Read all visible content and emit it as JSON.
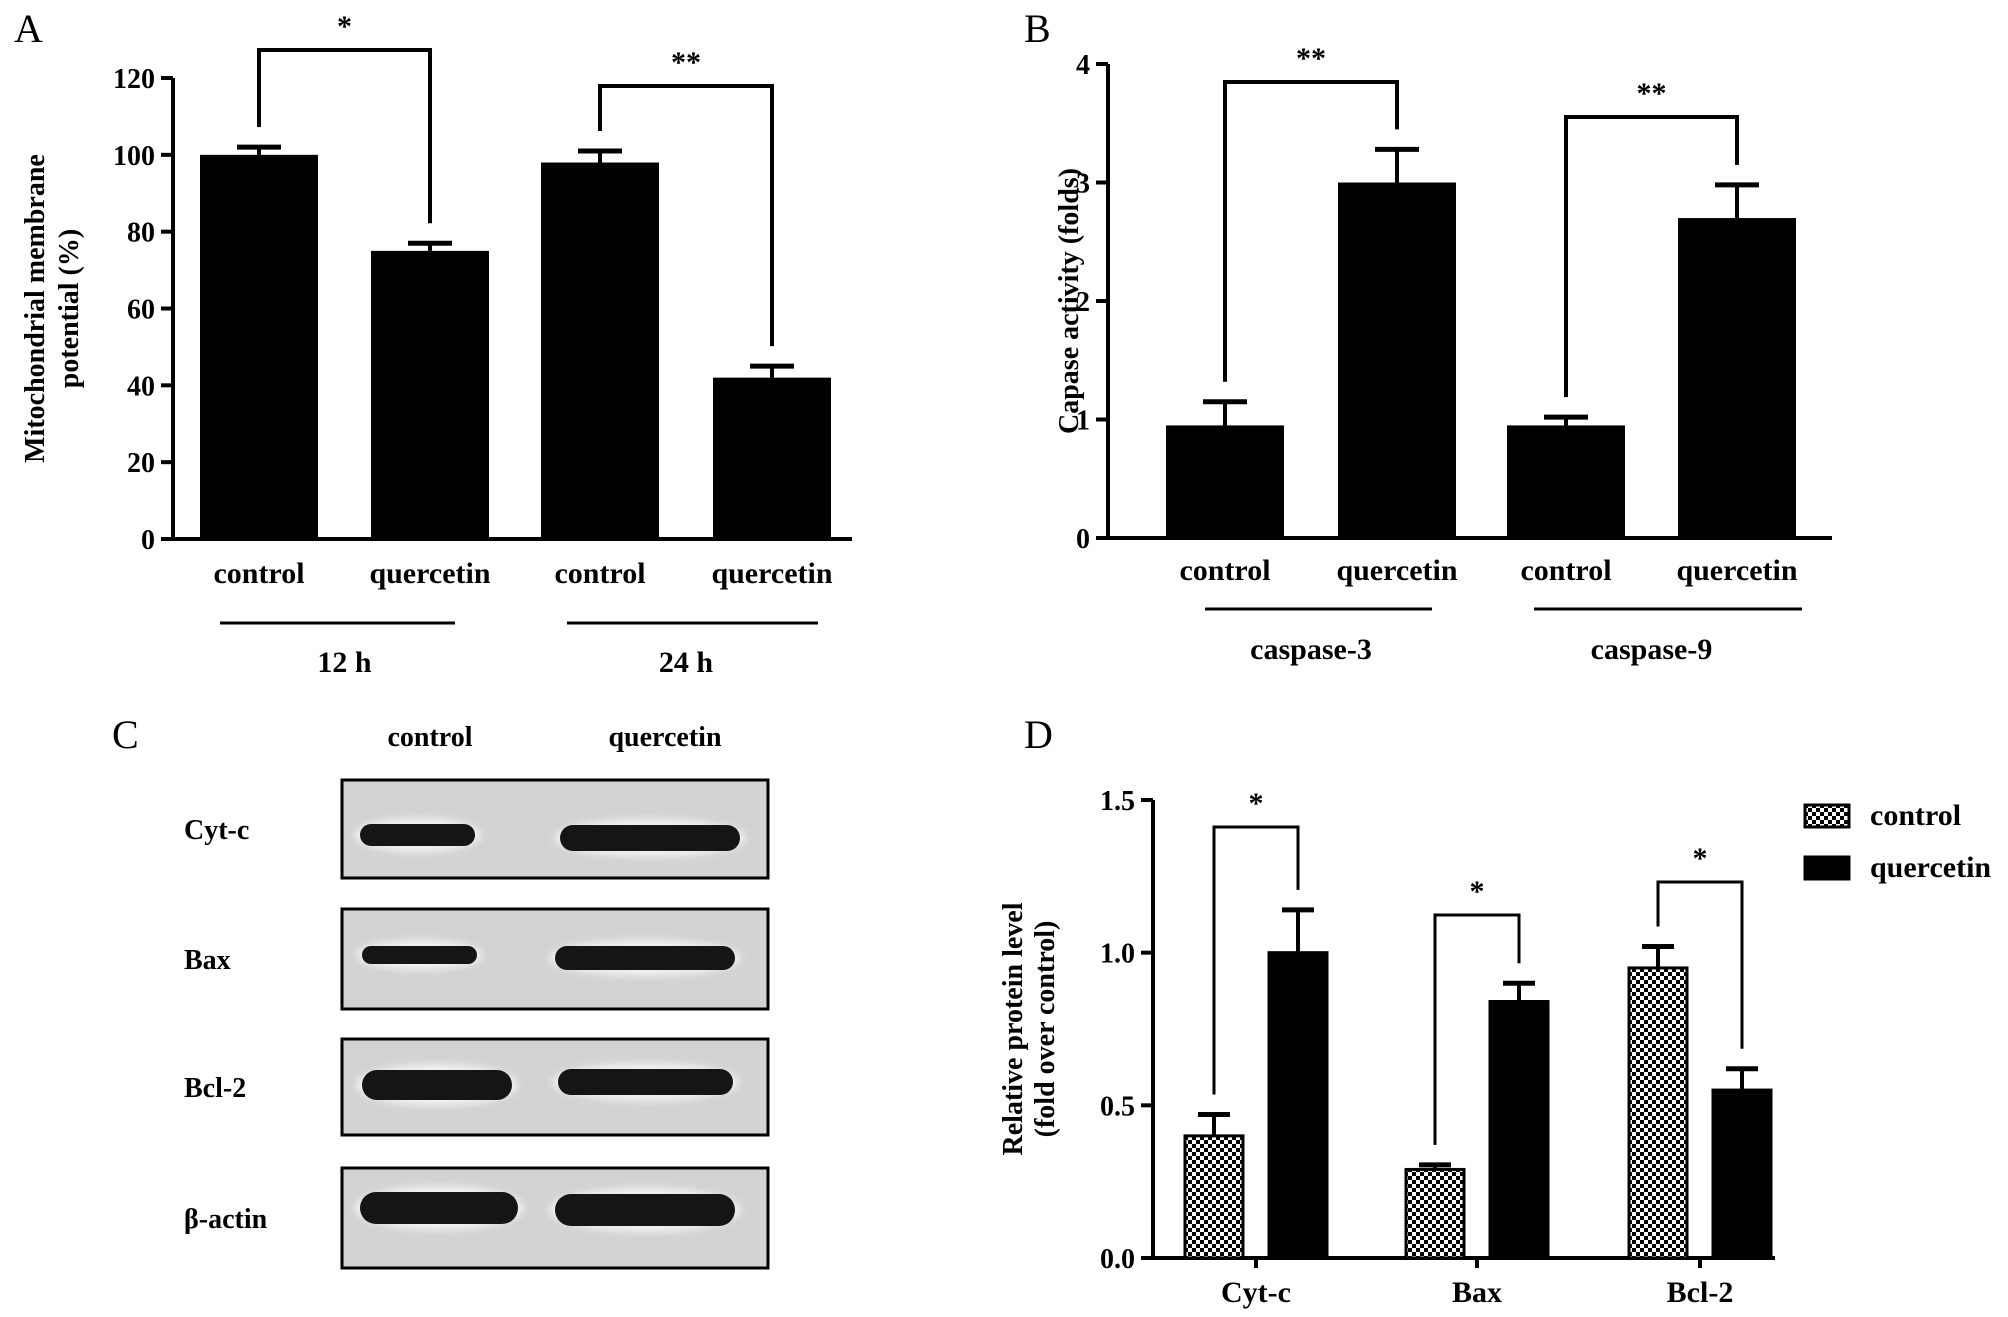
{
  "chart_data": [
    {
      "panel": "A",
      "type": "bar",
      "ylabel_lines": [
        "Mitochondrial membrane",
        "potential (%)"
      ],
      "ylim": [
        0,
        120
      ],
      "yticks": [
        0,
        20,
        40,
        60,
        80,
        100,
        120
      ],
      "categories": [
        "control",
        "quercetin",
        "control",
        "quercetin"
      ],
      "values": [
        100,
        75,
        98,
        42
      ],
      "errors": [
        2,
        2,
        3,
        3
      ],
      "groups": [
        {
          "label": "12  h",
          "members": [
            0,
            1
          ]
        },
        {
          "label": "24 h",
          "members": [
            2,
            3
          ]
        }
      ],
      "significance": [
        {
          "pair": [
            0,
            1
          ],
          "label": "*"
        },
        {
          "pair": [
            2,
            3
          ],
          "label": "**"
        }
      ]
    },
    {
      "panel": "B",
      "type": "bar",
      "ylabel": "Capase activity (folds)",
      "ylim": [
        0,
        4
      ],
      "yticks": [
        0,
        1,
        2,
        3,
        4
      ],
      "categories": [
        "control",
        "quercetin",
        "control",
        "quercetin"
      ],
      "values": [
        0.95,
        3.0,
        0.95,
        2.7
      ],
      "errors": [
        0.2,
        0.28,
        0.07,
        0.28
      ],
      "groups": [
        {
          "label": "caspase-3",
          "members": [
            0,
            1
          ]
        },
        {
          "label": "caspase-9",
          "members": [
            2,
            3
          ]
        }
      ],
      "significance": [
        {
          "pair": [
            0,
            1
          ],
          "label": "**"
        },
        {
          "pair": [
            2,
            3
          ],
          "label": "**"
        }
      ]
    },
    {
      "panel": "D",
      "type": "bar",
      "ylabel_lines": [
        "Relative protein level",
        "(fold over control)"
      ],
      "ylim": [
        0,
        1.5
      ],
      "yticks": [
        "0.0",
        "0.5",
        "1.0",
        "1.5"
      ],
      "categories": [
        "Cyt-c",
        "Bax",
        "Bcl-2"
      ],
      "series": [
        {
          "name": "control",
          "values": [
            0.4,
            0.29,
            0.95
          ],
          "errors": [
            0.07,
            0.015,
            0.07
          ]
        },
        {
          "name": "quercetin",
          "values": [
            1.0,
            0.84,
            0.55
          ],
          "errors": [
            0.14,
            0.06,
            0.07
          ]
        }
      ],
      "significance": [
        {
          "category": 0,
          "label": "*"
        },
        {
          "category": 1,
          "label": "*"
        },
        {
          "category": 2,
          "label": "*"
        }
      ],
      "legend": "top-right"
    }
  ],
  "blot": {
    "panel": "C",
    "columns": [
      "control",
      "quercetin"
    ],
    "rows": [
      "Cyt-c",
      "Bax",
      "Bcl-2",
      "β-actin"
    ]
  },
  "panel_letters": [
    "A",
    "B",
    "C",
    "D"
  ],
  "colors": {
    "bar": "#000000",
    "membrane": "#d2d2d2",
    "band": "#151515"
  }
}
